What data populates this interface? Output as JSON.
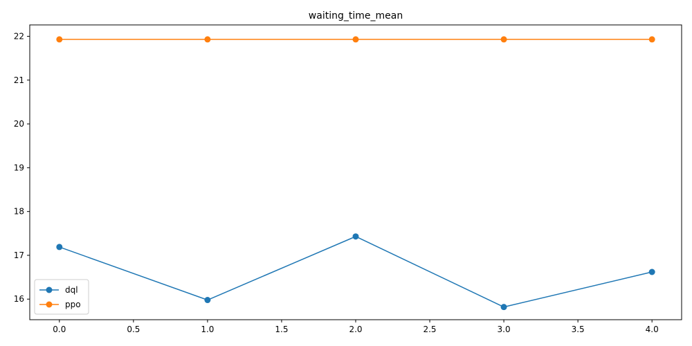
{
  "chart_data": {
    "type": "line",
    "title": "waiting_time_mean",
    "xlabel": "",
    "ylabel": "",
    "x": [
      0,
      1,
      2,
      3,
      4
    ],
    "xlim": [
      -0.2,
      4.2
    ],
    "ylim": [
      15.53,
      22.26
    ],
    "x_ticks": [
      0.0,
      0.5,
      1.0,
      1.5,
      2.0,
      2.5,
      3.0,
      3.5,
      4.0
    ],
    "x_tick_labels": [
      "0.0",
      "0.5",
      "1.0",
      "1.5",
      "2.0",
      "2.5",
      "3.0",
      "3.5",
      "4.0"
    ],
    "y_ticks": [
      16,
      17,
      18,
      19,
      20,
      21,
      22
    ],
    "y_tick_labels": [
      "16",
      "17",
      "18",
      "19",
      "20",
      "21",
      "22"
    ],
    "grid": false,
    "legend_position": "lower-left",
    "series": [
      {
        "name": "dql",
        "color": "#1f77b4",
        "marker": "circle",
        "values": [
          17.19,
          15.98,
          17.43,
          15.82,
          16.62
        ]
      },
      {
        "name": "ppo",
        "color": "#ff7f0e",
        "marker": "circle",
        "values": [
          21.93,
          21.93,
          21.93,
          21.93,
          21.93
        ]
      }
    ]
  }
}
